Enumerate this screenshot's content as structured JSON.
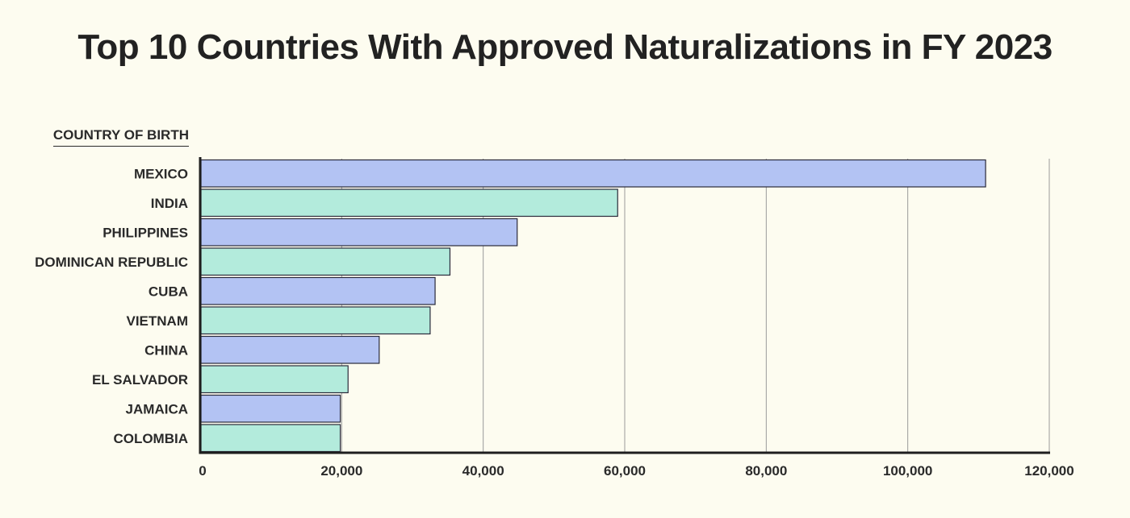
{
  "chart_data": {
    "type": "bar",
    "orientation": "horizontal",
    "title": "Top 10 Countries With Approved Naturalizations in FY 2023",
    "ylabel": "COUNTRY OF BIRTH",
    "xlabel": "",
    "categories": [
      "MEXICO",
      "INDIA",
      "PHILIPPINES",
      "DOMINICAN REPUBLIC",
      "CUBA",
      "VIETNAM",
      "CHINA",
      "EL SALVADOR",
      "JAMAICA",
      "COLOMBIA"
    ],
    "values": [
      111000,
      59000,
      44800,
      35300,
      33200,
      32500,
      25300,
      20900,
      19800,
      19800
    ],
    "xlim": [
      0,
      120000
    ],
    "xticks": [
      0,
      20000,
      40000,
      60000,
      80000,
      100000,
      120000
    ],
    "xtick_labels": [
      "0",
      "20,000",
      "40,000",
      "60,000",
      "80,000",
      "100,000",
      "120,000"
    ],
    "grid": "vertical",
    "colors": [
      "#b3c3f3",
      "#b3ebdc"
    ],
    "edge_color": "#2a2a3a"
  }
}
